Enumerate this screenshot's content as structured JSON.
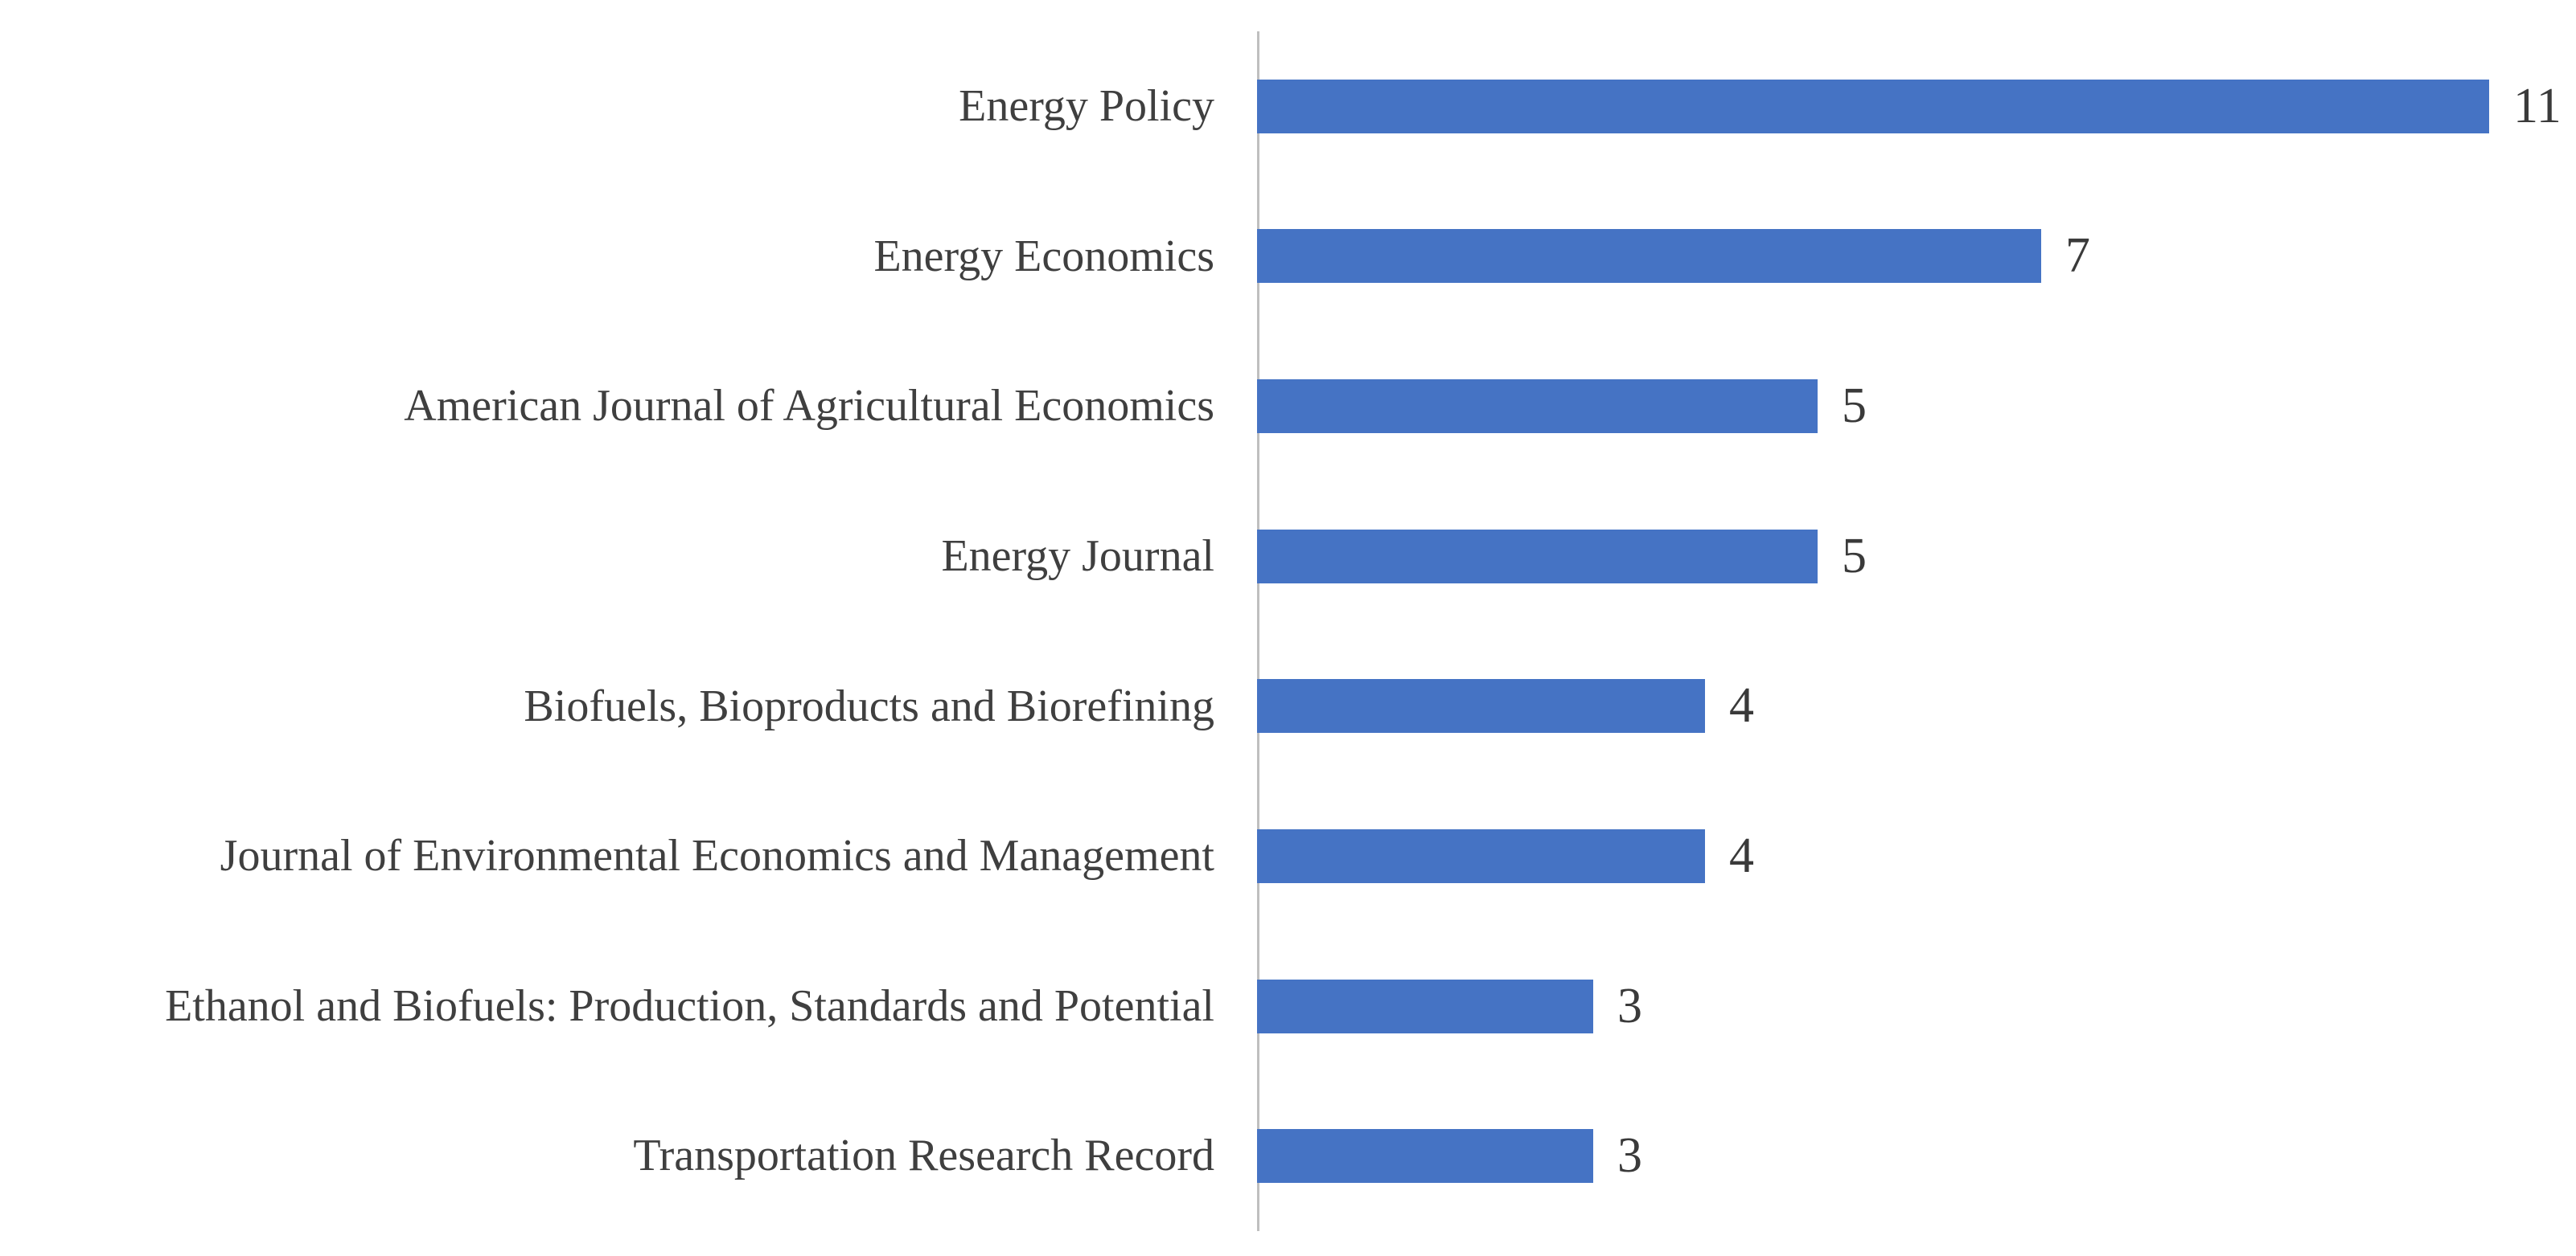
{
  "chart_data": {
    "type": "bar",
    "orientation": "horizontal",
    "title": "",
    "xlabel": "",
    "ylabel": "",
    "categories": [
      "Energy Policy",
      "Energy Economics",
      "American Journal of Agricultural Economics",
      "Energy Journal",
      "Biofuels, Bioproducts and Biorefining",
      "Journal of Environmental Economics and Management",
      "Ethanol and Biofuels: Production, Standards and Potential",
      "Transportation Research Record"
    ],
    "values": [
      11,
      7,
      5,
      5,
      4,
      4,
      3,
      3
    ],
    "xlim": [
      0,
      11.8
    ],
    "grid": false,
    "legend": false,
    "data_labels": true,
    "colors": {
      "bar": "#4573c4",
      "axis_line": "#bfbfbf",
      "category_label": "#3f3f3f",
      "value_label": "#3a3a3a",
      "background": "#ffffff"
    }
  }
}
